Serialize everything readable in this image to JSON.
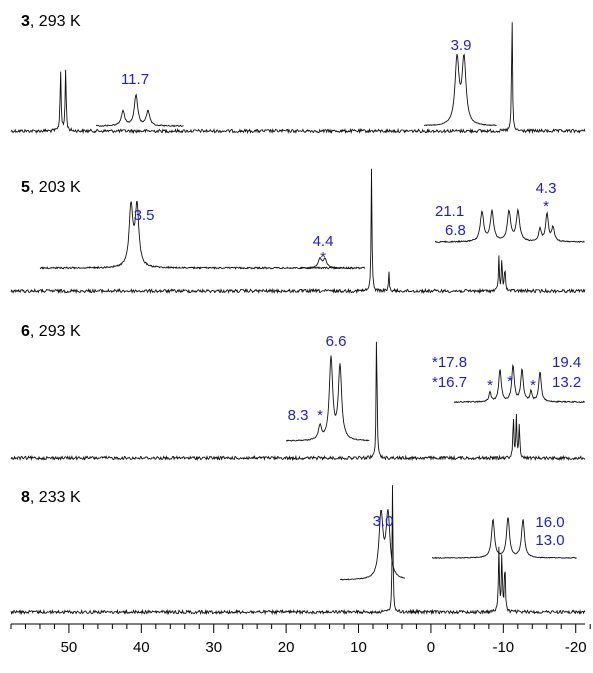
{
  "chart_data": {
    "type": "line",
    "x_axis": {
      "range": [
        58,
        -23
      ],
      "reversed": true,
      "ticks": [
        50,
        40,
        30,
        20,
        10,
        0,
        -10,
        -20
      ],
      "tick_labels": [
        "50",
        "40",
        "30",
        "20",
        "10",
        "0",
        "-10",
        "-20"
      ],
      "minor_step": 2
    },
    "grid": false,
    "colors": {
      "trace": "#111111",
      "annotation": "#1e1ed2"
    },
    "spectra": [
      {
        "compound": "3",
        "label_rest": ", 293 K",
        "peaks": [
          {
            "ppm": 50.8,
            "height": 0.5,
            "multiplet": "doublet",
            "split": 0.35
          },
          {
            "ppm": -11.2,
            "height": 1.0,
            "multiplet": "singlet"
          }
        ],
        "insets": [
          {
            "name": "inset-1",
            "shape": "triplet"
          },
          {
            "name": "inset-2",
            "shape": "doublet"
          }
        ],
        "annotations": [
          "11.7",
          "3.9"
        ]
      },
      {
        "compound": "5",
        "label_rest": ", 203 K",
        "peaks": [
          {
            "ppm": 8.2,
            "height": 1.0,
            "multiplet": "singlet"
          },
          {
            "ppm": 5.8,
            "height": 0.15,
            "multiplet": "singlet"
          },
          {
            "ppm": -9.8,
            "height": 0.27,
            "multiplet": "cluster"
          }
        ],
        "insets": [
          {
            "name": "inset-1",
            "shape": "doublet"
          },
          {
            "name": "inset-2",
            "shape": "small"
          },
          {
            "name": "inset-3",
            "shape": "multiplet"
          }
        ],
        "annotations": [
          "3.5",
          "4.4",
          "*",
          "21.1",
          "6.8",
          "4.3",
          "*"
        ]
      },
      {
        "compound": "6",
        "label_rest": ", 293 K",
        "peaks": [
          {
            "ppm": 7.5,
            "height": 1.0,
            "multiplet": "singlet"
          },
          {
            "ppm": -11.8,
            "height": 0.32,
            "multiplet": "cluster"
          }
        ],
        "insets": [
          {
            "name": "inset-1",
            "shape": "doublet-star"
          },
          {
            "name": "inset-2",
            "shape": "multiplet-stars"
          }
        ],
        "annotations": [
          "6.6",
          "8.3",
          "*",
          "*17.8",
          "*16.7",
          "19.4",
          "13.2",
          "*",
          "*",
          "*"
        ]
      },
      {
        "compound": "8",
        "label_rest": ", 233 K",
        "peaks": [
          {
            "ppm": 5.3,
            "height": 1.0,
            "multiplet": "singlet"
          },
          {
            "ppm": -9.8,
            "height": 0.5,
            "multiplet": "cluster"
          }
        ],
        "insets": [
          {
            "name": "inset-1",
            "shape": "doublet"
          },
          {
            "name": "inset-2",
            "shape": "triplet"
          }
        ],
        "annotations": [
          "3.0",
          "16.0",
          "13.0"
        ]
      }
    ]
  }
}
